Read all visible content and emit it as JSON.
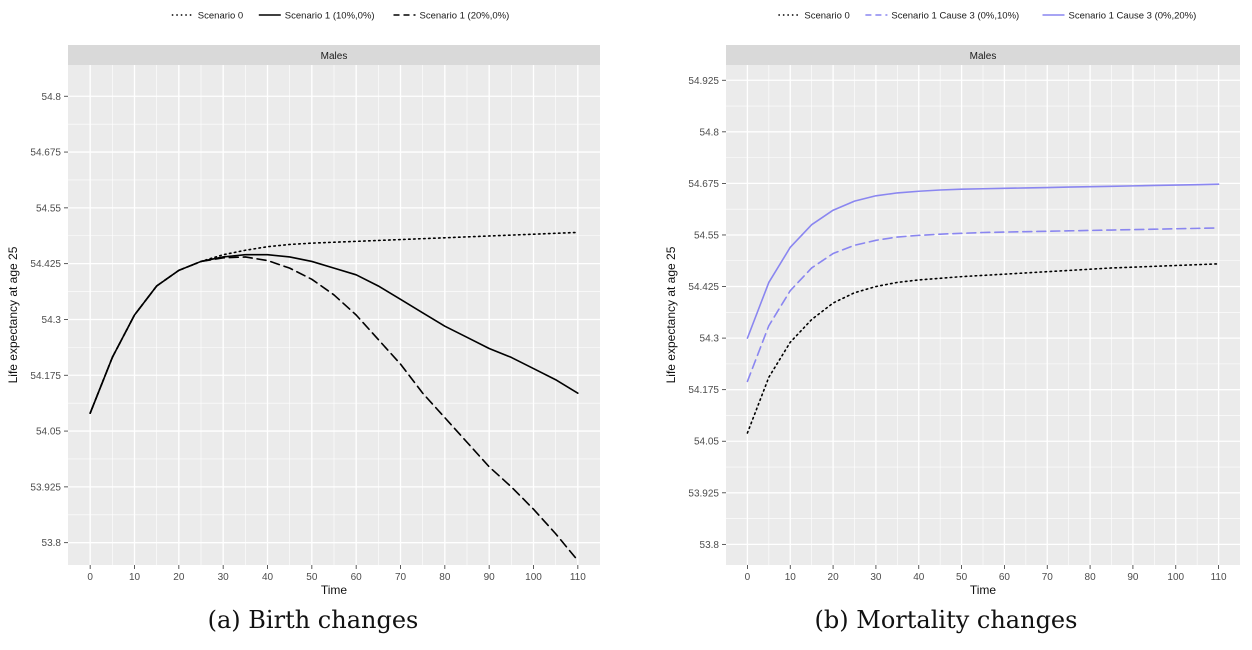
{
  "chart_data": [
    {
      "type": "line",
      "panel_strip": "Males",
      "xlabel": "Time",
      "ylabel": "Life expectancy at age 25",
      "xlim": [
        -5,
        115
      ],
      "ylim": [
        53.75,
        54.87
      ],
      "x_ticks": [
        0,
        10,
        20,
        30,
        40,
        50,
        60,
        70,
        80,
        90,
        100,
        110
      ],
      "y_ticks": [
        53.8,
        53.925,
        54.05,
        54.175,
        54.3,
        54.425,
        54.55,
        54.675,
        54.8
      ],
      "y_tick_labels": [
        "53.8",
        "53.925",
        "54.05",
        "54.175",
        "54.3",
        "54.425",
        "54.55",
        "54.675",
        "54.8"
      ],
      "grid": true,
      "legend_position": "top",
      "caption": "(a) Birth changes",
      "x": [
        0,
        5,
        10,
        15,
        20,
        25,
        30,
        35,
        40,
        45,
        50,
        55,
        60,
        65,
        70,
        75,
        80,
        85,
        90,
        95,
        100,
        105,
        110
      ],
      "series": [
        {
          "name": "Scenario 0",
          "style": "dotted",
          "color": "#000000",
          "values": [
            54.09,
            54.215,
            54.31,
            54.375,
            54.41,
            54.43,
            54.445,
            54.455,
            54.463,
            54.468,
            54.471,
            54.473,
            54.475,
            54.477,
            54.479,
            54.481,
            54.483,
            54.485,
            54.487,
            54.489,
            54.491,
            54.493,
            54.495
          ]
        },
        {
          "name": "Scenario 1 (10%,0%)",
          "style": "solid",
          "color": "#000000",
          "values": [
            54.09,
            54.215,
            54.31,
            54.375,
            54.41,
            54.43,
            54.44,
            54.445,
            54.445,
            54.44,
            54.43,
            54.415,
            54.4,
            54.375,
            54.345,
            54.315,
            54.285,
            54.26,
            54.235,
            54.215,
            54.19,
            54.165,
            54.135
          ]
        },
        {
          "name": "Scenario 1 (20%,0%)",
          "style": "dashed",
          "color": "#000000",
          "values": [
            54.09,
            54.215,
            54.31,
            54.375,
            54.41,
            54.43,
            54.438,
            54.44,
            54.432,
            54.415,
            54.39,
            54.355,
            54.31,
            54.255,
            54.2,
            54.135,
            54.08,
            54.025,
            53.97,
            53.925,
            53.875,
            53.82,
            53.76
          ]
        }
      ]
    },
    {
      "type": "line",
      "panel_strip": "Males",
      "xlabel": "Time",
      "ylabel": "Life expectancy at age 25",
      "xlim": [
        -5,
        115
      ],
      "ylim": [
        53.75,
        54.962
      ],
      "x_ticks": [
        0,
        10,
        20,
        30,
        40,
        50,
        60,
        70,
        80,
        90,
        100,
        110
      ],
      "y_ticks": [
        53.8,
        53.925,
        54.05,
        54.175,
        54.3,
        54.425,
        54.55,
        54.675,
        54.8,
        54.925
      ],
      "y_tick_labels": [
        "53.8",
        "53.925",
        "54.05",
        "54.175",
        "54.3",
        "54.425",
        "54.55",
        "54.675",
        "54.8",
        "54.925"
      ],
      "grid": true,
      "legend_position": "top",
      "caption": "(b) Mortality changes",
      "x": [
        0,
        5,
        10,
        15,
        20,
        25,
        30,
        35,
        40,
        45,
        50,
        55,
        60,
        65,
        70,
        75,
        80,
        85,
        90,
        95,
        100,
        105,
        110
      ],
      "series": [
        {
          "name": "Scenario 0",
          "style": "dotted",
          "color": "#000000",
          "values": [
            54.07,
            54.205,
            54.29,
            54.345,
            54.385,
            54.41,
            54.425,
            54.435,
            54.441,
            54.445,
            54.449,
            54.452,
            54.455,
            54.458,
            54.461,
            54.464,
            54.467,
            54.47,
            54.472,
            54.474,
            54.476,
            54.478,
            54.48
          ]
        },
        {
          "name": "Scenario 1 Cause 3 (0%,10%)",
          "style": "dashed",
          "color": "#8a86f0",
          "values": [
            54.195,
            54.33,
            54.415,
            54.47,
            54.505,
            54.525,
            54.537,
            54.545,
            54.549,
            54.552,
            54.554,
            54.556,
            54.557,
            54.558,
            54.559,
            54.56,
            54.561,
            54.562,
            54.563,
            54.564,
            54.565,
            54.566,
            54.567
          ]
        },
        {
          "name": "Scenario 1 Cause 3 (0%,20%)",
          "style": "solid",
          "color": "#8a86f0",
          "values": [
            54.3,
            54.435,
            54.52,
            54.575,
            54.61,
            54.632,
            54.645,
            54.652,
            54.656,
            54.659,
            54.661,
            54.662,
            54.663,
            54.664,
            54.665,
            54.666,
            54.667,
            54.668,
            54.669,
            54.67,
            54.671,
            54.672,
            54.673
          ]
        }
      ]
    }
  ],
  "colors": {
    "panel_bg": "#ebebeb",
    "strip_bg": "#d9d9d9",
    "grid_major": "#ffffff",
    "tick_text": "#4d4d4d",
    "purple": "#8a86f0"
  }
}
